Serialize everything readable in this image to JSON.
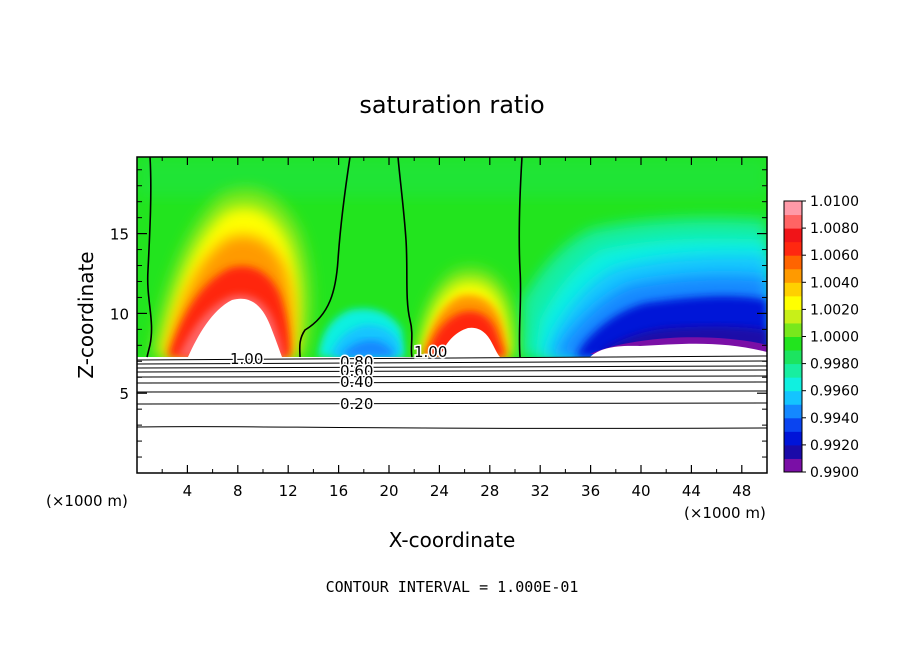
{
  "chart_data": {
    "type": "heatmap",
    "title": "saturation ratio",
    "xlabel": "X-coordinate",
    "ylabel": "Z-coordinate",
    "x_unit_left": "(×1000 m)",
    "x_unit_right": "(×1000 m)",
    "footer": "CONTOUR INTERVAL = 1.000E-01",
    "xlim": [
      0,
      50
    ],
    "ylim": [
      0,
      19.8
    ],
    "x_ticks": [
      4,
      8,
      12,
      16,
      20,
      24,
      28,
      32,
      36,
      40,
      44,
      48
    ],
    "y_ticks": [
      5,
      10,
      15
    ],
    "contour_labels": [
      "1.00",
      "0.80",
      "0.60",
      "0.40",
      "0.20",
      "1.00"
    ],
    "colorbar": {
      "min": 0.99,
      "max": 1.01,
      "tick_labels": [
        "1.0100",
        "1.0080",
        "1.0060",
        "1.0040",
        "1.0020",
        "1.0000",
        "0.9980",
        "0.9960",
        "0.9940",
        "0.9920",
        "0.9900"
      ],
      "colors": [
        "#7a0fa6",
        "#1a0aa8",
        "#0014d8",
        "#0a44f0",
        "#1488ff",
        "#14c4ff",
        "#10f0e0",
        "#18eea0",
        "#1ce460",
        "#22e41e",
        "#78e81c",
        "#c8f018",
        "#ffff00",
        "#ffd000",
        "#ff9a00",
        "#ff6400",
        "#ff2810",
        "#f01418",
        "#ff6464",
        "#ff9aa8"
      ]
    }
  }
}
